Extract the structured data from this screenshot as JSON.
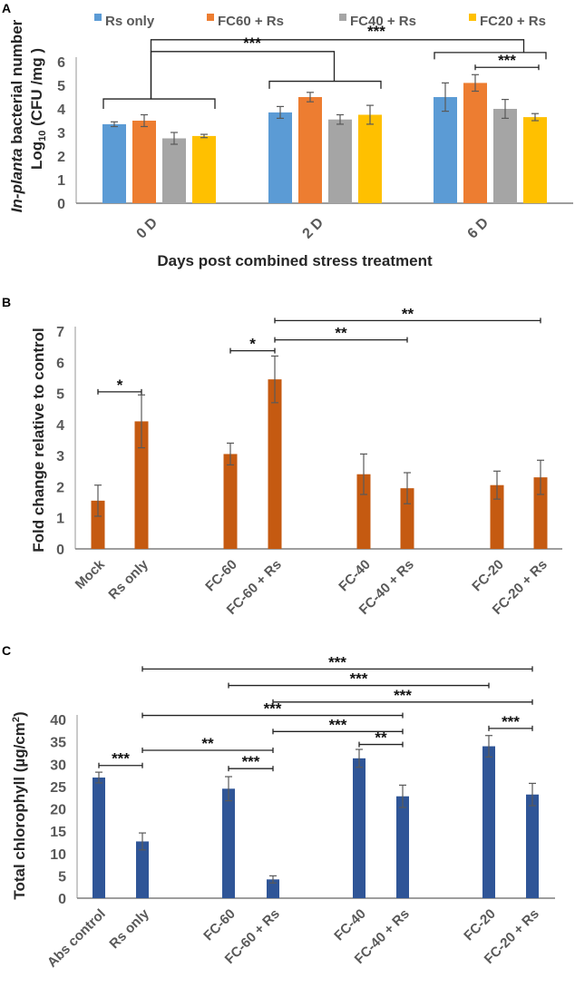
{
  "chart_data": [
    {
      "panel": "A",
      "type": "bar",
      "title": "",
      "xlabel": "Days post combined stress treatment",
      "ylabel_italic": "In-planta",
      "ylabel_rest": " bacterial number",
      "ylabel2_pre": "Log",
      "ylabel2_sub": "10",
      "ylabel2_post": " (CFU /mg )",
      "ylim": [
        0,
        6
      ],
      "yticks": [
        "0",
        "1",
        "2",
        "3",
        "4",
        "5",
        "6"
      ],
      "categories": [
        "0 D",
        "2 D",
        "6 D"
      ],
      "legend_position": "top",
      "series": [
        {
          "name": "Rs only",
          "color": "#5B9BD5",
          "values": [
            3.35,
            3.85,
            4.5
          ],
          "errors": [
            0.1,
            0.25,
            0.6
          ]
        },
        {
          "name": "FC60 + Rs",
          "color": "#ED7D31",
          "values": [
            3.5,
            4.5,
            5.1
          ],
          "errors": [
            0.25,
            0.2,
            0.35
          ]
        },
        {
          "name": "FC40 + Rs",
          "color": "#A5A5A5",
          "values": [
            2.75,
            3.55,
            4.0
          ],
          "errors": [
            0.25,
            0.2,
            0.4
          ]
        },
        {
          "name": "FC20 + Rs",
          "color": "#FFC000",
          "values": [
            2.85,
            3.75,
            3.65
          ],
          "errors": [
            0.07,
            0.4,
            0.15
          ]
        }
      ],
      "group_brackets": [
        {
          "group": 0,
          "y": 4.42,
          "drop": 4.0
        },
        {
          "group": 1,
          "y": 5.17,
          "drop": 4.85
        },
        {
          "group": 2,
          "y": 6.39,
          "drop": 6.1
        }
      ],
      "significance": [
        {
          "from_group": 0,
          "to_group": 2,
          "y": 6.93,
          "label": "***"
        },
        {
          "from_group": 0,
          "to_group": 1,
          "y": 6.43,
          "label": "***"
        },
        {
          "group": 2,
          "from_series": 1,
          "to_series": 3,
          "y": 5.76,
          "label": "***"
        }
      ]
    },
    {
      "panel": "B",
      "type": "bar",
      "title": "",
      "xlabel": "",
      "ylabel": "Fold change relative to control",
      "ylim": [
        0,
        7
      ],
      "yticks": [
        "0",
        "1",
        "2",
        "3",
        "4",
        "5",
        "6",
        "7"
      ],
      "color": "#C55A11",
      "categories": [
        "Mock",
        "Rs only",
        "FC-60",
        "FC-60 + Rs",
        "FC-40",
        "FC-40 + Rs",
        "FC-20",
        "FC-20 + Rs"
      ],
      "values": [
        1.55,
        4.1,
        3.05,
        5.45,
        2.4,
        1.95,
        2.05,
        2.3
      ],
      "errors": [
        0.5,
        0.85,
        0.35,
        0.75,
        0.65,
        0.5,
        0.45,
        0.55
      ],
      "significance": [
        {
          "from": 0,
          "to": 1,
          "y": 5.05,
          "label": "*"
        },
        {
          "from": 2,
          "to": 3,
          "y": 6.37,
          "label": "*"
        },
        {
          "from": 3,
          "to": 5,
          "y": 6.72,
          "label": "**"
        },
        {
          "from": 3,
          "to": 7,
          "y": 7.34,
          "label": "**"
        }
      ]
    },
    {
      "panel": "C",
      "type": "bar",
      "title": "",
      "xlabel": "",
      "ylabel_pre": "Total chlorophyll (µg/cm",
      "ylabel_sup": "2",
      "ylabel_post": ")",
      "ylim": [
        0,
        40
      ],
      "yticks": [
        "0",
        "5",
        "10",
        "15",
        "20",
        "25",
        "30",
        "35",
        "40"
      ],
      "color": "#2F5597",
      "categories": [
        "Abs control",
        "Rs only",
        "FC-60",
        "FC-60 + Rs",
        "FC-40",
        "FC-40 + Rs",
        "FC-20",
        "FC-20 + Rs"
      ],
      "values": [
        27.0,
        12.7,
        24.5,
        4.2,
        31.3,
        22.8,
        34.0,
        23.2
      ],
      "errors": [
        1.2,
        1.9,
        2.7,
        0.8,
        2.0,
        2.5,
        2.4,
        2.5
      ],
      "significance": [
        {
          "from": 0,
          "to": 1,
          "y": 29.7,
          "label": "***"
        },
        {
          "from": 2,
          "to": 3,
          "y": 29.0,
          "label": "***"
        },
        {
          "from": 1,
          "to": 3,
          "y": 33.1,
          "label": "**"
        },
        {
          "from": 4,
          "to": 5,
          "y": 34.4,
          "label": "**"
        },
        {
          "from": 3,
          "to": 5,
          "y": 37.3,
          "label": "***"
        },
        {
          "from": 6,
          "to": 7,
          "y": 38.0,
          "label": "***"
        },
        {
          "from": 1,
          "to": 5,
          "y": 40.9,
          "label": "***"
        },
        {
          "from": 3,
          "to": 7,
          "y": 43.9,
          "label": "***"
        },
        {
          "from": 2,
          "to": 6,
          "y": 47.6,
          "label": "***"
        },
        {
          "from": 1,
          "to": 7,
          "y": 51.3,
          "label": "***"
        }
      ]
    }
  ]
}
